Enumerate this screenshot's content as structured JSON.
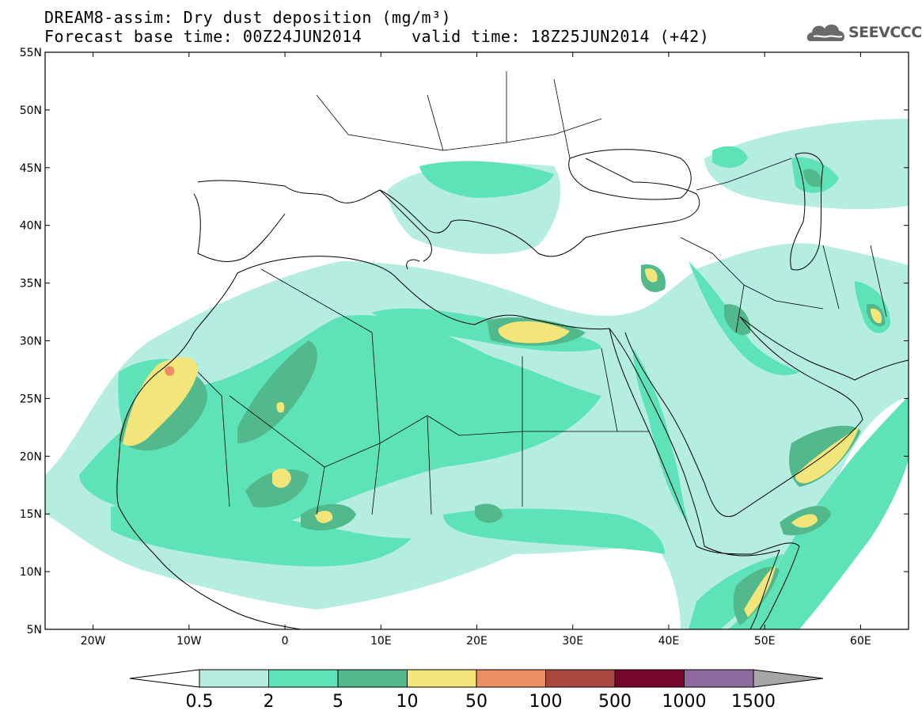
{
  "title": {
    "line1": "DREAM8-assim: Dry dust deposition (mg/m³)",
    "line2": "Forecast base time: 00Z24JUN2014     valid time: 18Z25JUN2014 (+42)"
  },
  "logo": {
    "text": "SEEVCCC",
    "icon": "cloud-logo-icon"
  },
  "map": {
    "lon_range": [
      -25,
      65
    ],
    "lat_range": [
      5,
      55
    ],
    "lat_ticks": [
      "55N",
      "50N",
      "45N",
      "40N",
      "35N",
      "30N",
      "25N",
      "20N",
      "15N",
      "10N",
      "5N"
    ],
    "lon_ticks": [
      "20W",
      "10W",
      "0",
      "10E",
      "20E",
      "30E",
      "40E",
      "50E",
      "60E"
    ]
  },
  "colorbar": {
    "levels": [
      "0.5",
      "2",
      "5",
      "10",
      "50",
      "100",
      "500",
      "1000",
      "1500"
    ],
    "colors": [
      "#b5ede1",
      "#5ee2b7",
      "#52b98d",
      "#f2e57a",
      "#eb8d65",
      "#a9483f",
      "#75072c",
      "#8e6a9e",
      "#a6a6a6"
    ],
    "under_color": "#ffffff"
  }
}
